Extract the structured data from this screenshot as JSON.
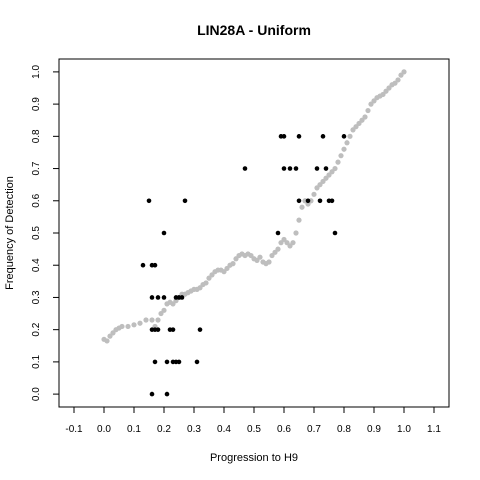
{
  "chart_data": {
    "type": "scatter",
    "title": "LIN28A - Uniform",
    "xlabel": "Progression to H9",
    "ylabel": "Frequency of Detection",
    "xlim": [
      -0.15,
      1.15
    ],
    "ylim": [
      -0.04,
      1.04
    ],
    "x_ticks": [
      "-0.1",
      "0.0",
      "0.1",
      "0.2",
      "0.3",
      "0.4",
      "0.5",
      "0.6",
      "0.7",
      "0.8",
      "0.9",
      "1.0",
      "1.1"
    ],
    "y_ticks": [
      "0.0",
      "0.1",
      "0.2",
      "0.3",
      "0.4",
      "0.5",
      "0.6",
      "0.7",
      "0.8",
      "0.9",
      "1.0"
    ],
    "grid": false,
    "series": [
      {
        "color": "#bebebe",
        "points": [
          [
            0.0,
            0.17
          ],
          [
            0.01,
            0.165
          ],
          [
            0.02,
            0.18
          ],
          [
            0.03,
            0.19
          ],
          [
            0.04,
            0.2
          ],
          [
            0.05,
            0.205
          ],
          [
            0.06,
            0.21
          ],
          [
            0.08,
            0.21
          ],
          [
            0.1,
            0.215
          ],
          [
            0.12,
            0.22
          ],
          [
            0.14,
            0.23
          ],
          [
            0.16,
            0.23
          ],
          [
            0.17,
            0.21
          ],
          [
            0.18,
            0.23
          ],
          [
            0.19,
            0.25
          ],
          [
            0.2,
            0.26
          ],
          [
            0.21,
            0.28
          ],
          [
            0.22,
            0.285
          ],
          [
            0.23,
            0.28
          ],
          [
            0.24,
            0.29
          ],
          [
            0.25,
            0.3
          ],
          [
            0.26,
            0.31
          ],
          [
            0.27,
            0.31
          ],
          [
            0.28,
            0.315
          ],
          [
            0.29,
            0.32
          ],
          [
            0.3,
            0.325
          ],
          [
            0.31,
            0.325
          ],
          [
            0.32,
            0.33
          ],
          [
            0.33,
            0.34
          ],
          [
            0.34,
            0.345
          ],
          [
            0.35,
            0.36
          ],
          [
            0.36,
            0.37
          ],
          [
            0.37,
            0.38
          ],
          [
            0.38,
            0.385
          ],
          [
            0.39,
            0.385
          ],
          [
            0.4,
            0.38
          ],
          [
            0.41,
            0.39
          ],
          [
            0.42,
            0.4
          ],
          [
            0.43,
            0.405
          ],
          [
            0.44,
            0.42
          ],
          [
            0.45,
            0.43
          ],
          [
            0.46,
            0.435
          ],
          [
            0.47,
            0.43
          ],
          [
            0.48,
            0.435
          ],
          [
            0.49,
            0.43
          ],
          [
            0.5,
            0.42
          ],
          [
            0.51,
            0.415
          ],
          [
            0.52,
            0.425
          ],
          [
            0.53,
            0.41
          ],
          [
            0.54,
            0.405
          ],
          [
            0.55,
            0.41
          ],
          [
            0.56,
            0.43
          ],
          [
            0.57,
            0.44
          ],
          [
            0.58,
            0.45
          ],
          [
            0.59,
            0.47
          ],
          [
            0.6,
            0.48
          ],
          [
            0.61,
            0.47
          ],
          [
            0.62,
            0.46
          ],
          [
            0.63,
            0.47
          ],
          [
            0.64,
            0.5
          ],
          [
            0.65,
            0.54
          ],
          [
            0.66,
            0.58
          ],
          [
            0.67,
            0.6
          ],
          [
            0.68,
            0.59
          ],
          [
            0.69,
            0.6
          ],
          [
            0.7,
            0.62
          ],
          [
            0.71,
            0.64
          ],
          [
            0.72,
            0.65
          ],
          [
            0.73,
            0.66
          ],
          [
            0.74,
            0.67
          ],
          [
            0.75,
            0.68
          ],
          [
            0.76,
            0.69
          ],
          [
            0.77,
            0.7
          ],
          [
            0.78,
            0.72
          ],
          [
            0.79,
            0.74
          ],
          [
            0.8,
            0.76
          ],
          [
            0.81,
            0.78
          ],
          [
            0.82,
            0.8
          ],
          [
            0.83,
            0.82
          ],
          [
            0.84,
            0.83
          ],
          [
            0.85,
            0.84
          ],
          [
            0.86,
            0.85
          ],
          [
            0.87,
            0.86
          ],
          [
            0.88,
            0.88
          ],
          [
            0.89,
            0.9
          ],
          [
            0.9,
            0.91
          ],
          [
            0.91,
            0.92
          ],
          [
            0.92,
            0.925
          ],
          [
            0.93,
            0.93
          ],
          [
            0.94,
            0.94
          ],
          [
            0.95,
            0.95
          ],
          [
            0.96,
            0.96
          ],
          [
            0.97,
            0.965
          ],
          [
            0.98,
            0.975
          ],
          [
            0.99,
            0.99
          ],
          [
            1.0,
            1.0
          ]
        ]
      },
      {
        "color": "#000000",
        "points": [
          [
            0.16,
            0.0
          ],
          [
            0.21,
            0.0
          ],
          [
            0.17,
            0.1
          ],
          [
            0.21,
            0.1
          ],
          [
            0.23,
            0.1
          ],
          [
            0.24,
            0.1
          ],
          [
            0.25,
            0.1
          ],
          [
            0.31,
            0.1
          ],
          [
            0.16,
            0.2
          ],
          [
            0.17,
            0.2
          ],
          [
            0.18,
            0.2
          ],
          [
            0.22,
            0.2
          ],
          [
            0.23,
            0.2
          ],
          [
            0.32,
            0.2
          ],
          [
            0.16,
            0.3
          ],
          [
            0.18,
            0.3
          ],
          [
            0.2,
            0.3
          ],
          [
            0.24,
            0.3
          ],
          [
            0.25,
            0.3
          ],
          [
            0.26,
            0.3
          ],
          [
            0.13,
            0.4
          ],
          [
            0.16,
            0.4
          ],
          [
            0.17,
            0.4
          ],
          [
            0.2,
            0.5
          ],
          [
            0.58,
            0.5
          ],
          [
            0.77,
            0.5
          ],
          [
            0.15,
            0.6
          ],
          [
            0.27,
            0.6
          ],
          [
            0.65,
            0.6
          ],
          [
            0.68,
            0.6
          ],
          [
            0.72,
            0.6
          ],
          [
            0.75,
            0.6
          ],
          [
            0.76,
            0.6
          ],
          [
            0.47,
            0.7
          ],
          [
            0.6,
            0.7
          ],
          [
            0.62,
            0.7
          ],
          [
            0.64,
            0.7
          ],
          [
            0.71,
            0.7
          ],
          [
            0.74,
            0.7
          ],
          [
            0.59,
            0.8
          ],
          [
            0.6,
            0.8
          ],
          [
            0.65,
            0.8
          ],
          [
            0.73,
            0.8
          ],
          [
            0.8,
            0.8
          ]
        ]
      }
    ]
  }
}
